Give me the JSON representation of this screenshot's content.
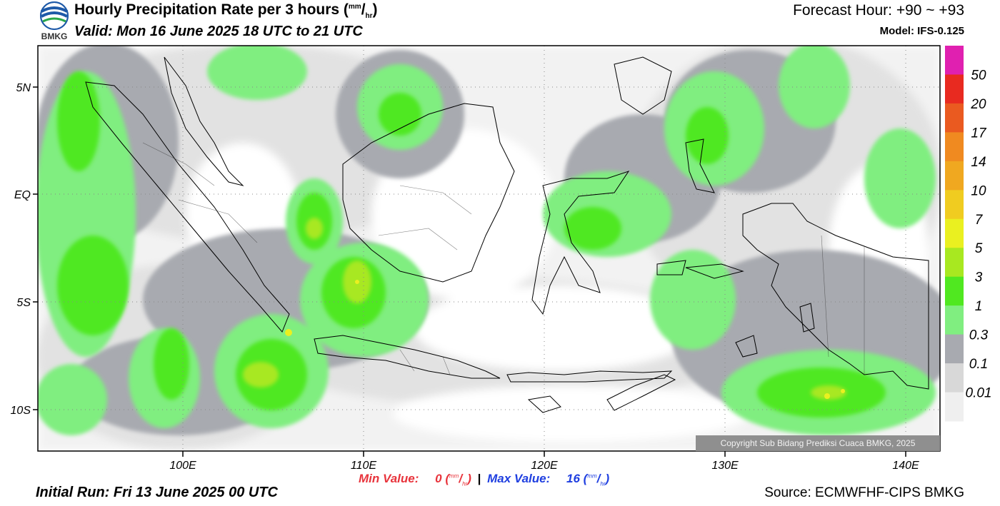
{
  "header": {
    "logo_text": "BMKG",
    "title_main": "Hourly Precipitation Rate per 3 hours (",
    "title_unit_num": "mm",
    "title_unit_den": "hr",
    "title_end": ")",
    "valid": "Valid: Mon 16 June 2025 18 UTC to 21 UTC",
    "forecast_hour": "Forecast Hour: +90 ~ +93",
    "model": "Model: IFS-0.125"
  },
  "axes": {
    "lon_ticks": [
      "100E",
      "110E",
      "120E",
      "130E",
      "140E"
    ],
    "lon_values": [
      100,
      110,
      120,
      130,
      140
    ],
    "lat_ticks": [
      "5N",
      "EQ",
      "5S",
      "10S"
    ],
    "lat_values": [
      5,
      0,
      -5,
      -10
    ],
    "lon_range": [
      92,
      142
    ],
    "lat_range": [
      -12,
      7
    ],
    "grid": "dotted"
  },
  "colorbar": {
    "labels": [
      "50",
      "20",
      "17",
      "14",
      "10",
      "7",
      "5",
      "3",
      "1",
      "0.3",
      "0.1",
      "0.01"
    ],
    "colors": [
      "#e020b0",
      "#e82a20",
      "#ea5a20",
      "#f08a20",
      "#f0a820",
      "#f0cc20",
      "#eaf020",
      "#a8e820",
      "#50e820",
      "#80ee80",
      "#a8aab0",
      "#d8d8d8",
      "#efefef"
    ]
  },
  "stats": {
    "min_label": "Min Value:",
    "min_value": "0",
    "separator": "|",
    "max_label": "Max Value:",
    "max_value": "16",
    "unit_num": "mm",
    "unit_den": "hr"
  },
  "footer": {
    "initial_run": "Initial Run: Fri 13 June 2025 00 UTC",
    "source": "Source: ECMWFHF-CIPS BMKG",
    "copyright": "Copyright Sub Bidang Prediksi Cuaca BMKG, 2025"
  }
}
